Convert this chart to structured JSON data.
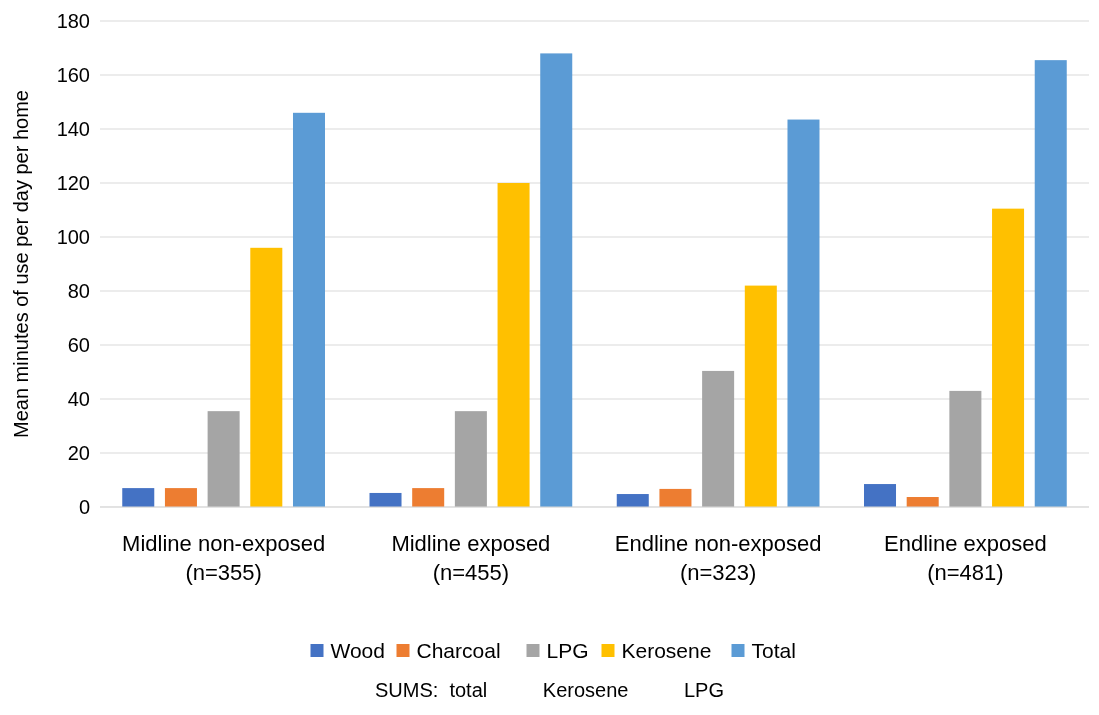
{
  "chart_data": {
    "type": "bar",
    "ylabel": "Mean minutes of use per day per home",
    "categories": [
      "Midline non-exposed\n(n=355)",
      "Midline exposed\n(n=455)",
      "Endline non-exposed\n(n=323)",
      "Endline exposed\n(n=481)"
    ],
    "series": [
      {
        "name": "Wood",
        "color": "#4472c4",
        "values": [
          7,
          5.2,
          4.8,
          8.5
        ]
      },
      {
        "name": "Charcoal",
        "color": "#ed7d31",
        "values": [
          7,
          7,
          6.7,
          3.7
        ]
      },
      {
        "name": "LPG",
        "color": "#a5a5a5",
        "values": [
          35.5,
          35.5,
          50.4,
          43
        ]
      },
      {
        "name": "Kerosene",
        "color": "#ffc000",
        "values": [
          96,
          120,
          82,
          110.5
        ]
      },
      {
        "name": "Total",
        "color": "#5b9bd5",
        "values": [
          146,
          168,
          143.5,
          165.5
        ]
      }
    ],
    "ylim": [
      0,
      180
    ],
    "yticks": [
      0,
      20,
      40,
      60,
      80,
      100,
      120,
      140,
      160,
      180
    ],
    "grid": "y",
    "legend": "bottom",
    "annotations": [
      "SUMS:  total          Kerosene          LPG"
    ]
  }
}
